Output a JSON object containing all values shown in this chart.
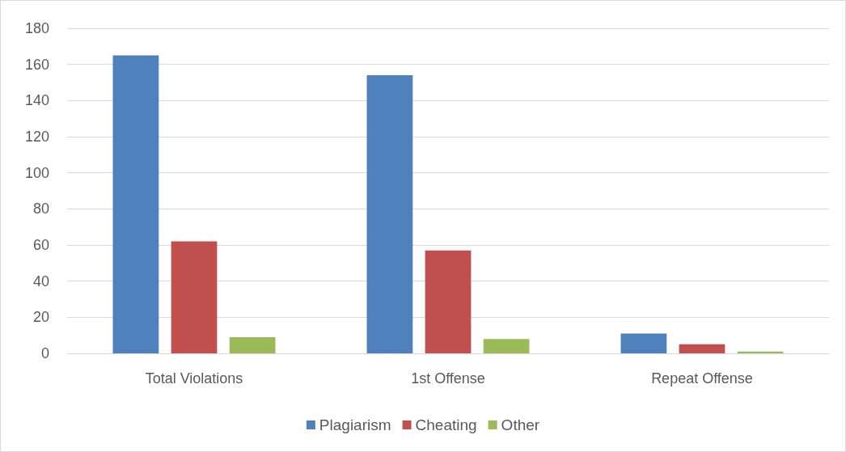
{
  "chart_data": {
    "type": "bar",
    "categories": [
      "Total Violations",
      "1st Offense",
      "Repeat Offense"
    ],
    "series": [
      {
        "name": "Plagiarism",
        "color": "#4f81bd",
        "values": [
          165,
          154,
          11
        ]
      },
      {
        "name": "Cheating",
        "color": "#c0504d",
        "values": [
          62,
          57,
          5
        ]
      },
      {
        "name": "Other",
        "color": "#9bbb59",
        "values": [
          9,
          8,
          1
        ]
      }
    ],
    "ylim": [
      0,
      180
    ],
    "yticks": [
      0,
      20,
      40,
      60,
      80,
      100,
      120,
      140,
      160,
      180
    ],
    "grid": "y",
    "legend": "bottom"
  }
}
